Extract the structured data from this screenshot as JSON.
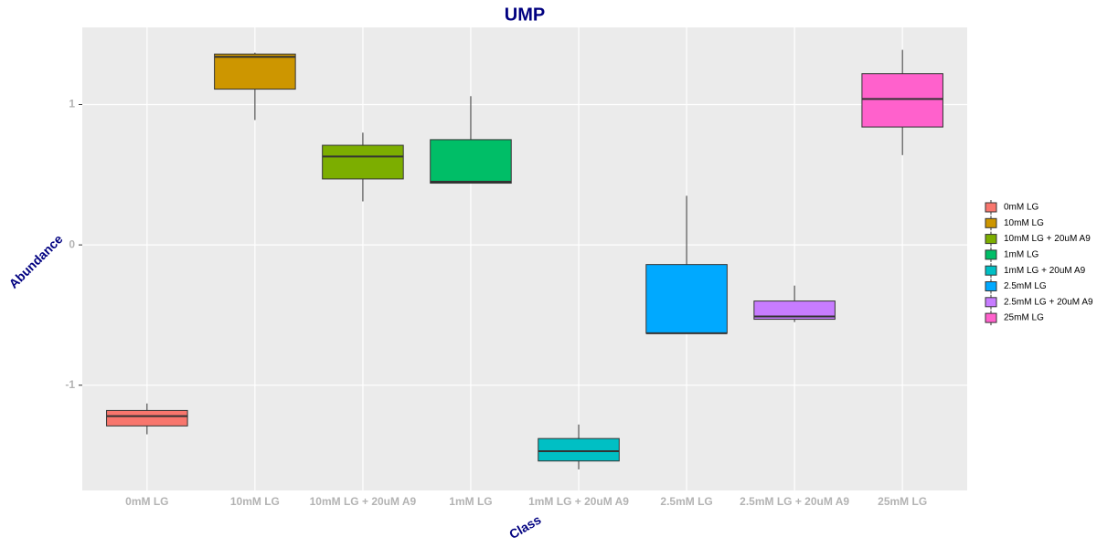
{
  "chart_data": {
    "type": "box",
    "title": "UMP",
    "x_label": "Class",
    "y_label": "Abundance",
    "categories": [
      "0mM LG",
      "10mM LG",
      "10mM LG + 20uM A9",
      "1mM LG",
      "1mM LG + 20uM A9",
      "2.5mM LG",
      "2.5mM LG + 20uM A9",
      "25mM LG"
    ],
    "series": [
      {
        "name": "0mM LG",
        "color": "#f8766d",
        "min": -1.35,
        "q1": -1.29,
        "median": -1.22,
        "q3": -1.18,
        "max": -1.13
      },
      {
        "name": "10mM LG",
        "color": "#cd9600",
        "min": 0.89,
        "q1": 1.11,
        "median": 1.34,
        "q3": 1.36,
        "max": 1.37
      },
      {
        "name": "10mM LG + 20uM A9",
        "color": "#7cae00",
        "min": 0.31,
        "q1": 0.47,
        "median": 0.63,
        "q3": 0.71,
        "max": 0.8
      },
      {
        "name": "1mM LG",
        "color": "#00be67",
        "min": 0.44,
        "q1": 0.44,
        "median": 0.45,
        "q3": 0.75,
        "max": 1.06
      },
      {
        "name": "1mM LG + 20uM A9",
        "color": "#00bfc4",
        "min": -1.6,
        "q1": -1.54,
        "median": -1.47,
        "q3": -1.38,
        "max": -1.28
      },
      {
        "name": "2.5mM LG",
        "color": "#00a9ff",
        "min": -0.63,
        "q1": -0.63,
        "median": -0.63,
        "q3": -0.14,
        "max": 0.35
      },
      {
        "name": "2.5mM LG + 20uM A9",
        "color": "#c77cff",
        "min": -0.55,
        "q1": -0.53,
        "median": -0.51,
        "q3": -0.4,
        "max": -0.29
      },
      {
        "name": "25mM LG",
        "color": "#ff61cc",
        "min": 0.64,
        "q1": 0.84,
        "median": 1.04,
        "q3": 1.22,
        "max": 1.39
      }
    ],
    "ylim": [
      -1.75,
      1.55
    ],
    "yticks": [
      -1,
      0,
      1
    ],
    "grid": true,
    "legend": "right"
  }
}
